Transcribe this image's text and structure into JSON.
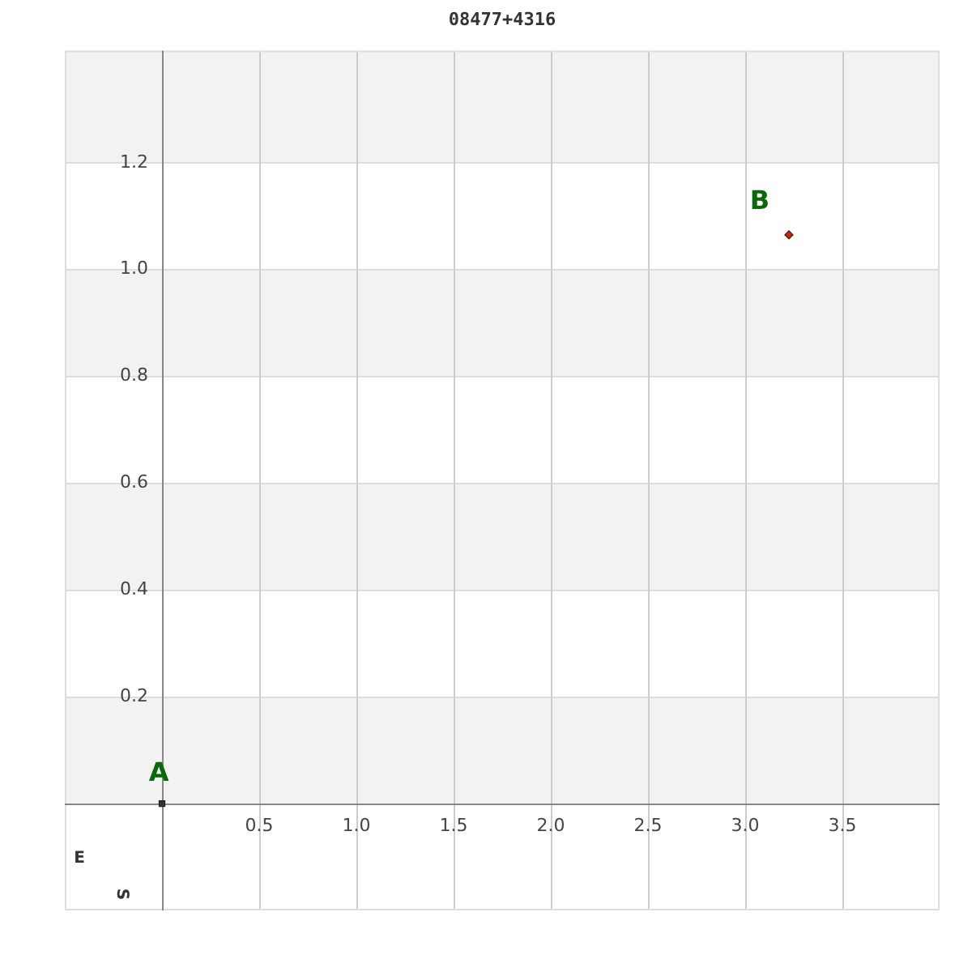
{
  "chart_data": {
    "type": "scatter",
    "title": "08477+4316",
    "series": [
      {
        "x": [
          0
        ],
        "values": [
          0
        ],
        "color": "#333333",
        "marker": "square"
      },
      {
        "x": [
          3.225
        ],
        "values": [
          1.065
        ],
        "color": "#e02000",
        "marker": "diamond"
      }
    ],
    "xlim": [
      -0.5,
      4.0
    ],
    "ylim": [
      -0.2,
      1.41
    ],
    "xticks": [
      {
        "value": 0.5,
        "label": "0.5"
      },
      {
        "value": 1,
        "label": "1.0"
      },
      {
        "value": 1.5,
        "label": "1.5"
      },
      {
        "value": 2,
        "label": "2.0"
      },
      {
        "value": 2.5,
        "label": "2.5"
      },
      {
        "value": 3,
        "label": "3.0"
      },
      {
        "value": 3.5,
        "label": "3.5"
      }
    ],
    "yticks": [
      {
        "value": 0.2,
        "label": "0.2"
      },
      {
        "value": 0.4,
        "label": "0.4"
      },
      {
        "value": 0.6,
        "label": "0.6"
      },
      {
        "value": 0.8,
        "label": "0.8"
      },
      {
        "value": 1,
        "label": "1.0"
      },
      {
        "value": 1.2,
        "label": "1.2"
      }
    ],
    "bands": [
      {
        "axis": "y",
        "from": 0,
        "to": 0.2,
        "color": "#f2f2f2"
      },
      {
        "axis": "y",
        "from": 0.4,
        "to": 0.6,
        "color": "#f2f2f2"
      },
      {
        "axis": "y",
        "from": 0.8,
        "to": 1.0,
        "color": "#f2f2f2"
      },
      {
        "axis": "y",
        "from": 1.2,
        "to": 1.41,
        "color": "#f2f2f2"
      }
    ],
    "grid": true,
    "legend": false,
    "annotations": [
      {
        "text": "A",
        "x": 0,
        "y": 0
      },
      {
        "text": "B",
        "x": 3.225,
        "y": 1.065
      },
      "E",
      "S"
    ]
  }
}
